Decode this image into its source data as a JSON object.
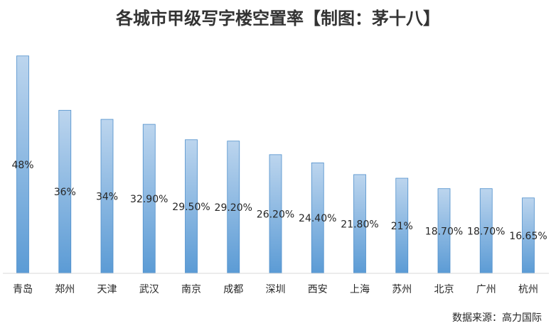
{
  "chart_data": {
    "type": "bar",
    "title": "各城市甲级写字楼空置率【制图：茅十八】",
    "source": "数据来源：高力国际",
    "categories": [
      "青岛",
      "郑州",
      "天津",
      "武汉",
      "南京",
      "成都",
      "深圳",
      "西安",
      "上海",
      "苏州",
      "北京",
      "广州",
      "杭州"
    ],
    "values": [
      48,
      36,
      34,
      32.9,
      29.5,
      29.2,
      26.2,
      24.4,
      21.8,
      21,
      18.7,
      18.7,
      16.65
    ],
    "data_labels": [
      "48%",
      "36%",
      "34%",
      "32.90%",
      "29.50%",
      "29.20%",
      "26.20%",
      "24.40%",
      "21.80%",
      "21%",
      "18.70%",
      "18.70%",
      "16.65%"
    ],
    "ylim": [
      0,
      50
    ],
    "grid": false,
    "legend": "none",
    "bar_gradient": {
      "top": "#bcd5ee",
      "bottom": "#5b9bd5"
    },
    "bar_stroke": "#4f8fcb",
    "baseline_color": "#d9d9d9"
  }
}
